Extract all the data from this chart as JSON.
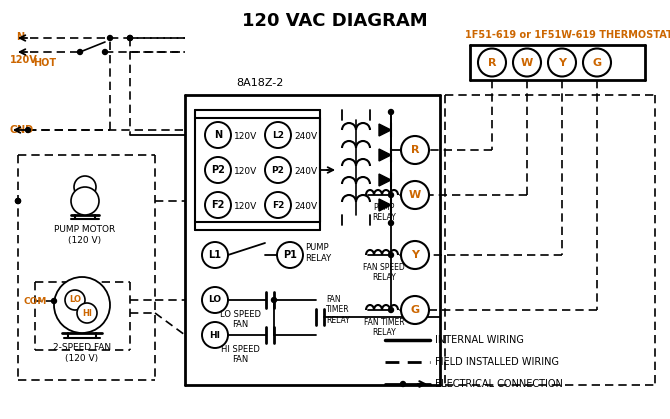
{
  "title": "120 VAC DIAGRAM",
  "bg_color": "#ffffff",
  "line_color": "#000000",
  "orange_color": "#cc6600",
  "thermostat_label": "1F51-619 or 1F51W-619 THERMOSTAT",
  "ecm_label": "8A18Z-2",
  "pump_motor_label": "PUMP MOTOR\n(120 V)",
  "fan_label": "2-SPEED FAN\n(120 V)",
  "legend_internal": "INTERNAL WIRING",
  "legend_field": "FIELD INSTALLED WIRING",
  "legend_electrical": "ELECTRICAL CONNECTION"
}
